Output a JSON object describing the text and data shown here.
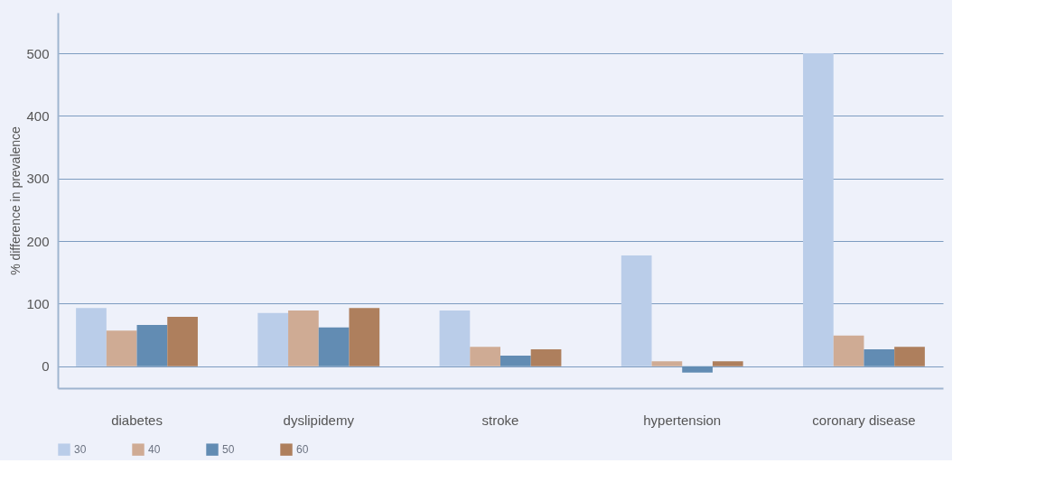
{
  "chart_data": {
    "type": "bar",
    "ylabel": "% difference in prevalence",
    "categories": [
      "diabetes",
      "dyslipidemy",
      "stroke",
      "hypertension",
      "coronary disease"
    ],
    "series": [
      {
        "name": "30",
        "color": "#bacde9",
        "values": [
          93,
          85,
          89,
          177,
          500
        ]
      },
      {
        "name": "40",
        "color": "#cfab94",
        "values": [
          57,
          89,
          31,
          8,
          49
        ]
      },
      {
        "name": "50",
        "color": "#628cb3",
        "values": [
          66,
          62,
          17,
          -10,
          27
        ]
      },
      {
        "name": "60",
        "color": "#ae7f5d",
        "values": [
          79,
          93,
          27,
          8,
          31
        ]
      }
    ],
    "ylim": [
      -35,
      565
    ],
    "yticks": [
      0,
      100,
      200,
      300,
      400,
      500
    ],
    "grid": "y",
    "legend": "bottom"
  }
}
